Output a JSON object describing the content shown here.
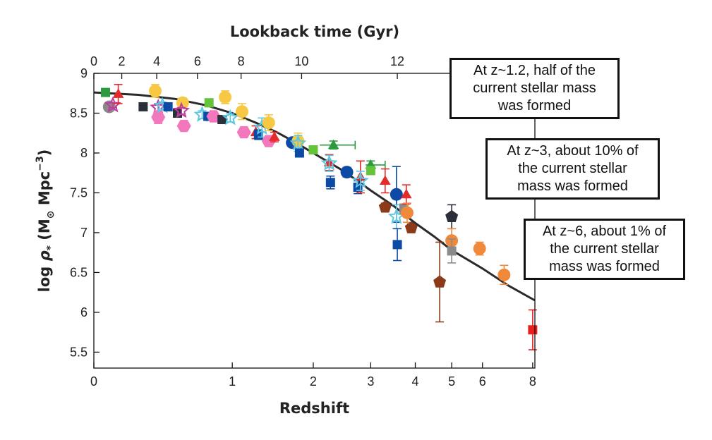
{
  "chart_data": {
    "type": "scatter",
    "xlabel": "Redshift",
    "top_xlabel": "Lookback time (Gyr)",
    "ylabel": "log ρ* (M⊙ Mpc−3)",
    "x_scale": "log(1+z)",
    "xlim": [
      0,
      8.1
    ],
    "ylim": [
      5.3,
      9.0
    ],
    "x_ticks": [
      "0",
      "1",
      "2",
      "3",
      "4",
      "5",
      "6",
      "8"
    ],
    "x_tick_values": [
      0,
      1,
      2,
      3,
      4,
      5,
      6,
      8
    ],
    "y_ticks": [
      "5.5",
      "6",
      "6.5",
      "7",
      "7.5",
      "8",
      "8.5",
      "9"
    ],
    "y_tick_values": [
      5.5,
      6,
      6.5,
      7,
      7.5,
      8,
      8.5,
      9
    ],
    "top_ticks": [
      "0",
      "2",
      "4",
      "6",
      "8",
      "10",
      "12"
    ],
    "top_tick_redshifts": [
      0,
      0.15,
      0.37,
      0.68,
      1.09,
      1.83,
      3.57
    ],
    "model_curve": {
      "x": [
        0,
        0.25,
        0.5,
        0.75,
        1.0,
        1.25,
        1.5,
        1.75,
        2.0,
        2.5,
        3.0,
        3.5,
        4.0,
        4.5,
        5.0,
        6.0,
        7.0,
        8.1
      ],
      "y": [
        8.76,
        8.73,
        8.68,
        8.6,
        8.5,
        8.38,
        8.26,
        8.13,
        8.0,
        7.77,
        7.53,
        7.33,
        7.12,
        6.95,
        6.78,
        6.55,
        6.33,
        6.15
      ]
    },
    "points": [
      {
        "x": 0.06,
        "y": 8.76,
        "shape": "square",
        "color": "#2e9a3f",
        "err": 0.03
      },
      {
        "x": 0.08,
        "y": 8.58,
        "shape": "circle",
        "color": "#8a8a8a",
        "err": 0.03
      },
      {
        "x": 0.1,
        "y": 8.6,
        "shape": "star",
        "color": "#c23aa0",
        "err": 0.03
      },
      {
        "x": 0.13,
        "y": 8.74,
        "shape": "triangle",
        "color": "#e52a2a",
        "err": 0.12
      },
      {
        "x": 0.28,
        "y": 8.58,
        "shape": "square",
        "color": "#2b2f3a",
        "err": 0.04
      },
      {
        "x": 0.36,
        "y": 8.78,
        "shape": "circle",
        "color": "#f6c844",
        "err": 0.08
      },
      {
        "x": 0.38,
        "y": 8.57,
        "shape": "star",
        "color": "#c23aa0",
        "err": 0.05
      },
      {
        "x": 0.38,
        "y": 8.45,
        "shape": "hexagon",
        "color": "#f277bc",
        "err": 0.08
      },
      {
        "x": 0.41,
        "y": 8.59,
        "shape": "star",
        "color": "#5fc8e0",
        "err": 0.05
      },
      {
        "x": 0.45,
        "y": 8.58,
        "shape": "square",
        "color": "#0c4aa6",
        "err": 0.05
      },
      {
        "x": 0.52,
        "y": 8.5,
        "shape": "square",
        "color": "#2b2f3a",
        "err": 0.04
      },
      {
        "x": 0.56,
        "y": 8.63,
        "shape": "circle",
        "color": "#f6c844",
        "err": 0.06
      },
      {
        "x": 0.55,
        "y": 8.53,
        "shape": "star",
        "color": "#c23aa0",
        "err": 0.04
      },
      {
        "x": 0.57,
        "y": 8.34,
        "shape": "hexagon",
        "color": "#f277bc",
        "err": 0.05
      },
      {
        "x": 0.72,
        "y": 8.48,
        "shape": "star",
        "color": "#5fc8e0",
        "err": 0.05
      },
      {
        "x": 0.77,
        "y": 8.46,
        "shape": "square",
        "color": "#0c4aa6",
        "err": 0.05
      },
      {
        "x": 0.78,
        "y": 8.63,
        "shape": "square",
        "color": "#65c43a",
        "err": 0.05
      },
      {
        "x": 0.82,
        "y": 8.46,
        "shape": "hexagon",
        "color": "#f277bc",
        "err": 0.05
      },
      {
        "x": 0.9,
        "y": 8.42,
        "shape": "square",
        "color": "#2b2f3a",
        "err": 0.05
      },
      {
        "x": 0.93,
        "y": 8.7,
        "shape": "circle",
        "color": "#f6c844",
        "err": 0.08
      },
      {
        "x": 0.98,
        "y": 8.44,
        "shape": "star",
        "color": "#5fc8e0",
        "err": 0.05
      },
      {
        "x": 1.1,
        "y": 8.52,
        "shape": "circle",
        "color": "#f6c844",
        "err": 0.1
      },
      {
        "x": 1.12,
        "y": 8.26,
        "shape": "hexagon",
        "color": "#f277bc",
        "err": 0.06
      },
      {
        "x": 1.25,
        "y": 8.26,
        "shape": "triangle",
        "color": "#e52a2a",
        "err": 0.08
      },
      {
        "x": 1.28,
        "y": 8.23,
        "shape": "square",
        "color": "#0c4aa6",
        "err": 0.06
      },
      {
        "x": 1.32,
        "y": 8.32,
        "shape": "star",
        "color": "#5fc8e0",
        "err": 0.12
      },
      {
        "x": 1.4,
        "y": 8.38,
        "shape": "circle",
        "color": "#f6c844",
        "err": 0.1
      },
      {
        "x": 1.4,
        "y": 8.15,
        "shape": "hexagon",
        "color": "#f277bc",
        "err": 0.06
      },
      {
        "x": 1.47,
        "y": 8.2,
        "shape": "triangle",
        "color": "#e52a2a",
        "err": 0.06
      },
      {
        "x": 1.7,
        "y": 8.13,
        "shape": "circle",
        "color": "#0c4aa6",
        "err": 0.05
      },
      {
        "x": 1.78,
        "y": 8.15,
        "shape": "circle",
        "color": "#f6c844",
        "err": 0.1
      },
      {
        "x": 1.78,
        "y": 8.12,
        "shape": "star",
        "color": "#5fc8e0",
        "err": 0.1
      },
      {
        "x": 1.8,
        "y": 8.0,
        "shape": "square",
        "color": "#0c4aa6",
        "err": 0.05
      },
      {
        "x": 2.0,
        "y": 8.04,
        "shape": "square",
        "color": "#65c43a",
        "err": 0.05
      },
      {
        "x": 2.25,
        "y": 7.88,
        "shape": "triangle",
        "color": "#e52a2a",
        "err": 0.1
      },
      {
        "x": 2.25,
        "y": 7.87,
        "shape": "star",
        "color": "#5fc8e0",
        "err": 0.1
      },
      {
        "x": 2.27,
        "y": 7.63,
        "shape": "square",
        "color": "#0c4aa6",
        "err": 0.08
      },
      {
        "x": 2.32,
        "y": 8.1,
        "shape": "triangle",
        "color": "#2e9a3f",
        "err": 0.05,
        "xerr": [
          2.1,
          2.7
        ]
      },
      {
        "x": 2.55,
        "y": 7.76,
        "shape": "circle",
        "color": "#0c4aa6",
        "err": 0.06
      },
      {
        "x": 2.75,
        "y": 7.57,
        "shape": "square",
        "color": "#0c4aa6",
        "err": 0.08
      },
      {
        "x": 2.8,
        "y": 7.7,
        "shape": "triangle",
        "color": "#e52a2a",
        "err": 0.2
      },
      {
        "x": 2.8,
        "y": 7.65,
        "shape": "star",
        "color": "#5fc8e0",
        "err": 0.12
      },
      {
        "x": 3.0,
        "y": 7.85,
        "shape": "triangle",
        "color": "#2e9a3f",
        "err": 0.05,
        "xerr": [
          2.9,
          3.3
        ]
      },
      {
        "x": 3.0,
        "y": 7.78,
        "shape": "square",
        "color": "#65c43a",
        "err": 0.05
      },
      {
        "x": 3.3,
        "y": 7.32,
        "shape": "pentagon",
        "color": "#8b3a1a",
        "err": 0.05
      },
      {
        "x": 3.3,
        "y": 7.65,
        "shape": "triangle",
        "color": "#e52a2a",
        "err": 0.15
      },
      {
        "x": 3.55,
        "y": 7.48,
        "shape": "circle",
        "color": "#0c4aa6",
        "err": 0.35
      },
      {
        "x": 3.55,
        "y": 7.2,
        "shape": "star",
        "color": "#5fc8e0",
        "err": 0.15
      },
      {
        "x": 3.57,
        "y": 6.85,
        "shape": "square",
        "color": "#0c4aa6",
        "err": 0.2
      },
      {
        "x": 3.72,
        "y": 7.3,
        "shape": "square",
        "color": "#8a8a8a",
        "err": 0.06
      },
      {
        "x": 3.78,
        "y": 7.48,
        "shape": "triangle",
        "color": "#e52a2a",
        "err": 0.12
      },
      {
        "x": 3.8,
        "y": 7.25,
        "shape": "circle",
        "color": "#f0893a",
        "err": 0.12
      },
      {
        "x": 3.9,
        "y": 7.06,
        "shape": "pentagon",
        "color": "#8b3a1a",
        "err": 0.05
      },
      {
        "x": 4.65,
        "y": 6.38,
        "shape": "pentagon",
        "color": "#8b3a1a",
        "err": 0.5
      },
      {
        "x": 5.0,
        "y": 7.2,
        "shape": "pentagon",
        "color": "#2b2f3a",
        "err": 0.15
      },
      {
        "x": 5.0,
        "y": 6.9,
        "shape": "circle",
        "color": "#f0893a",
        "err": 0.15
      },
      {
        "x": 5.0,
        "y": 6.77,
        "shape": "square",
        "color": "#8a8a8a",
        "err": 0.15
      },
      {
        "x": 5.9,
        "y": 6.8,
        "shape": "circle",
        "color": "#f0893a",
        "err": 0.08
      },
      {
        "x": 6.8,
        "y": 6.47,
        "shape": "circle",
        "color": "#f0893a",
        "err": 0.12
      },
      {
        "x": 8.0,
        "y": 5.78,
        "shape": "square",
        "color": "#e81f1f",
        "err": 0.25
      }
    ]
  },
  "annotations": [
    {
      "lines": [
        "At z~1.2, half of the",
        "current stellar mass",
        "was formed"
      ]
    },
    {
      "lines": [
        "At z~3, about 10% of",
        "the current stellar",
        "mass was formed"
      ]
    },
    {
      "lines": [
        "At z~6, about 1% of",
        "the current stellar",
        "mass was formed"
      ]
    }
  ]
}
